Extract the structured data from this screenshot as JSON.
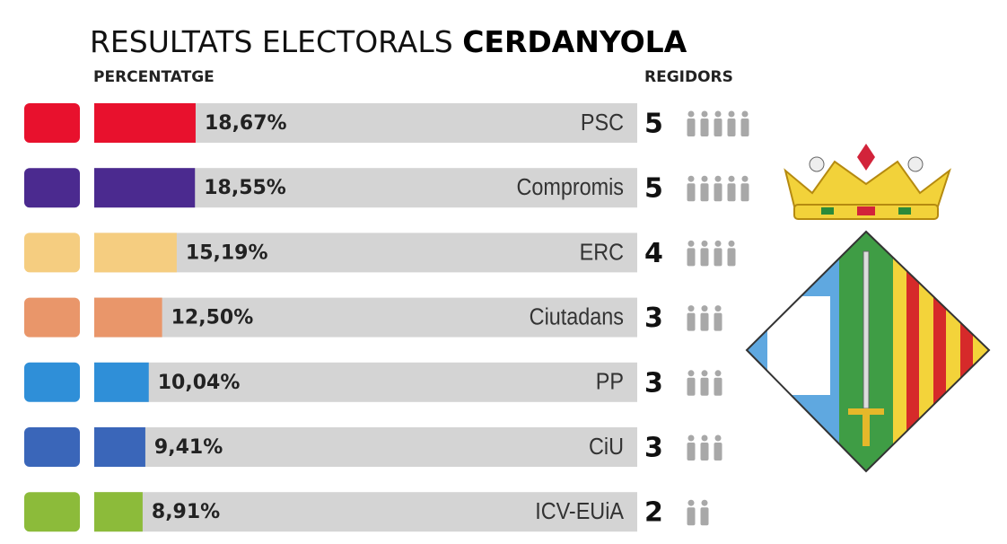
{
  "chart_data": {
    "type": "bar",
    "title": "RESULTATS ELECTORALS",
    "title_emphasis": "CERDANYOLA",
    "value_header": "PERCENTATGE",
    "seats_header": "REGIDORS",
    "categories": [
      "PSC",
      "Compromis",
      "ERC",
      "Ciutadans",
      "PP",
      "CiU",
      "ICV-EUiA"
    ],
    "values": [
      18.67,
      18.55,
      15.19,
      12.5,
      10.04,
      9.41,
      8.91
    ],
    "value_labels": [
      "18,67%",
      "18,55%",
      "15,19%",
      "12,50%",
      "10,04%",
      "9,41%",
      "8,91%"
    ],
    "colors": [
      "#e8112d",
      "#4b2a8f",
      "#f5cd80",
      "#e9966a",
      "#2f8fd8",
      "#3a66b9",
      "#8cbb3a"
    ],
    "seats": [
      5,
      5,
      4,
      3,
      3,
      3,
      2
    ],
    "xlim": [
      0,
      100
    ]
  }
}
